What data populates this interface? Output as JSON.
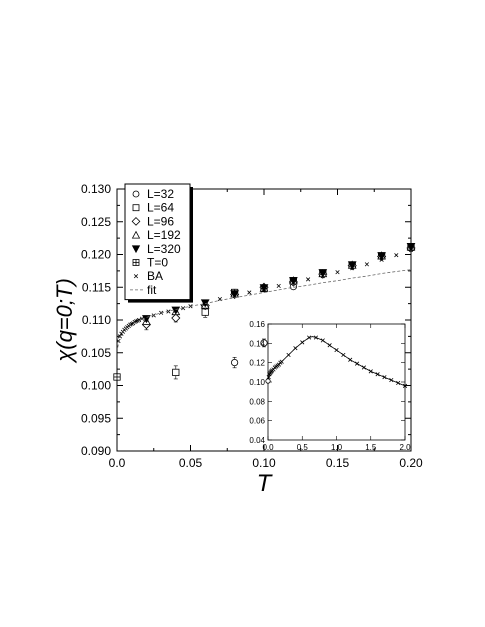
{
  "chart_data": {
    "type": "scatter",
    "xlabel": "T",
    "ylabel": "χ(q=0;T)",
    "xlim": [
      0.0,
      0.2
    ],
    "ylim": [
      0.09,
      0.13
    ],
    "xticks": [
      "0.0",
      "0.05",
      "0.10",
      "0.15",
      "0.20"
    ],
    "yticks": [
      "0.090",
      "0.095",
      "0.100",
      "0.105",
      "0.110",
      "0.115",
      "0.120",
      "0.125",
      "0.130"
    ],
    "legend_position": "top-left",
    "legend": [
      "L=32",
      "L=64",
      "L=96",
      "L=192",
      "L=320",
      "T=0",
      "BA",
      "fit"
    ],
    "series": [
      {
        "name": "L=32",
        "marker": "circle",
        "points": [
          [
            0.08,
            0.1035,
            0.0008
          ],
          [
            0.1,
            0.1065,
            0.0006
          ],
          [
            0.12,
            0.1151,
            0.0004
          ],
          [
            0.14,
            0.117,
            0.0004
          ],
          [
            0.16,
            0.1183,
            0.0003
          ],
          [
            0.18,
            0.1197,
            0.0003
          ],
          [
            0.2,
            0.1212,
            0.0003
          ]
        ]
      },
      {
        "name": "L=64",
        "marker": "square",
        "points": [
          [
            0.04,
            0.102,
            0.001
          ],
          [
            0.06,
            0.1112,
            0.0008
          ],
          [
            0.08,
            0.1142,
            0.0005
          ],
          [
            0.1,
            0.1148,
            0.0003
          ],
          [
            0.12,
            0.116,
            0.0003
          ],
          [
            0.14,
            0.1172,
            0.0003
          ],
          [
            0.16,
            0.1184,
            0.0003
          ],
          [
            0.18,
            0.1198,
            0.0003
          ],
          [
            0.2,
            0.1211,
            0.0003
          ]
        ]
      },
      {
        "name": "L=96",
        "marker": "diamond",
        "points": [
          [
            0.02,
            0.1093,
            0.0008
          ],
          [
            0.04,
            0.1103,
            0.0006
          ],
          [
            0.06,
            0.1122,
            0.0004
          ],
          [
            0.08,
            0.1139,
            0.0003
          ],
          [
            0.1,
            0.115,
            0.0003
          ],
          [
            0.12,
            0.1158,
            0.0003
          ],
          [
            0.14,
            0.117,
            0.0003
          ],
          [
            0.16,
            0.1183,
            0.0003
          ],
          [
            0.18,
            0.1197,
            0.0003
          ],
          [
            0.2,
            0.121,
            0.0003
          ]
        ]
      },
      {
        "name": "L=192",
        "marker": "triangle",
        "points": [
          [
            0.02,
            0.1098,
            0.0005
          ],
          [
            0.04,
            0.1113,
            0.0004
          ],
          [
            0.06,
            0.1123,
            0.0003
          ],
          [
            0.08,
            0.114,
            0.0003
          ],
          [
            0.1,
            0.1149,
            0.0003
          ],
          [
            0.12,
            0.116,
            0.0003
          ],
          [
            0.14,
            0.1171,
            0.0003
          ],
          [
            0.16,
            0.1184,
            0.0003
          ],
          [
            0.18,
            0.1198,
            0.0003
          ],
          [
            0.2,
            0.1212,
            0.0003
          ]
        ]
      },
      {
        "name": "L=320",
        "marker": "filled-triangle-down",
        "points": [
          [
            0.02,
            0.1102,
            0.0004
          ],
          [
            0.04,
            0.1115,
            0.0003
          ],
          [
            0.06,
            0.1126,
            0.0003
          ],
          [
            0.08,
            0.114,
            0.0003
          ],
          [
            0.1,
            0.1149,
            0.0002
          ],
          [
            0.12,
            0.116,
            0.0002
          ],
          [
            0.14,
            0.1172,
            0.0002
          ],
          [
            0.16,
            0.1184,
            0.0002
          ],
          [
            0.18,
            0.1198,
            0.0002
          ],
          [
            0.2,
            0.1212,
            0.0002
          ]
        ]
      },
      {
        "name": "T=0",
        "marker": "boxed-plus",
        "points": [
          [
            0.0,
            0.1013,
            0.0003
          ]
        ]
      },
      {
        "name": "BA",
        "marker": "cross",
        "points": [
          [
            0.001,
            0.1068
          ],
          [
            0.002,
            0.1075
          ],
          [
            0.003,
            0.1079
          ],
          [
            0.004,
            0.1082
          ],
          [
            0.005,
            0.1085
          ],
          [
            0.006,
            0.1087
          ],
          [
            0.007,
            0.1089
          ],
          [
            0.008,
            0.1091
          ],
          [
            0.009,
            0.1093
          ],
          [
            0.01,
            0.1094
          ],
          [
            0.011,
            0.1095
          ],
          [
            0.012,
            0.1097
          ],
          [
            0.013,
            0.1098
          ],
          [
            0.014,
            0.1099
          ],
          [
            0.015,
            0.11
          ],
          [
            0.017,
            0.1102
          ],
          [
            0.02,
            0.1104
          ],
          [
            0.025,
            0.1107
          ],
          [
            0.03,
            0.1111
          ],
          [
            0.035,
            0.1113
          ],
          [
            0.04,
            0.1116
          ],
          [
            0.045,
            0.1118
          ],
          [
            0.05,
            0.1121
          ],
          [
            0.06,
            0.1125
          ],
          [
            0.07,
            0.1132
          ],
          [
            0.08,
            0.1137
          ],
          [
            0.09,
            0.1142
          ],
          [
            0.1,
            0.1147
          ],
          [
            0.11,
            0.1152
          ],
          [
            0.12,
            0.1157
          ],
          [
            0.13,
            0.1162
          ],
          [
            0.14,
            0.1167
          ],
          [
            0.15,
            0.1173
          ],
          [
            0.16,
            0.1179
          ],
          [
            0.17,
            0.1185
          ],
          [
            0.18,
            0.1192
          ],
          [
            0.19,
            0.1199
          ],
          [
            0.2,
            0.1207
          ]
        ]
      },
      {
        "name": "fit",
        "style": "dashed",
        "x": [
          0.0005,
          0.002,
          0.005,
          0.01,
          0.02,
          0.03,
          0.04,
          0.05,
          0.06,
          0.07,
          0.08,
          0.09,
          0.1,
          0.11,
          0.12,
          0.13,
          0.14,
          0.15,
          0.16,
          0.17,
          0.18,
          0.19,
          0.2
        ],
        "y": [
          0.1058,
          0.1075,
          0.1085,
          0.1094,
          0.1104,
          0.1111,
          0.1116,
          0.1121,
          0.1125,
          0.113,
          0.1134,
          0.1138,
          0.1142,
          0.1146,
          0.115,
          0.1153,
          0.1157,
          0.116,
          0.1164,
          0.1167,
          0.1171,
          0.1174,
          0.1177
        ]
      }
    ],
    "inset": {
      "xlim": [
        0.0,
        2.0
      ],
      "ylim": [
        0.04,
        0.16
      ],
      "xticks": [
        "0.0",
        "0.5",
        "1.0",
        "1.5",
        "2.0"
      ],
      "yticks": [
        "0.04",
        "0.06",
        "0.08",
        "0.10",
        "0.12",
        "0.14",
        "0.16"
      ],
      "curve": {
        "x": [
          0.0,
          0.02,
          0.05,
          0.1,
          0.15,
          0.2,
          0.3,
          0.4,
          0.5,
          0.6,
          0.65,
          0.7,
          0.8,
          0.9,
          1.0,
          1.1,
          1.2,
          1.3,
          1.4,
          1.5,
          1.6,
          1.7,
          1.8,
          1.9,
          2.0
        ],
        "y": [
          0.101,
          0.108,
          0.111,
          0.115,
          0.118,
          0.121,
          0.128,
          0.135,
          0.141,
          0.146,
          0.147,
          0.146,
          0.143,
          0.138,
          0.133,
          0.128,
          0.123,
          0.119,
          0.115,
          0.111,
          0.108,
          0.105,
          0.102,
          0.099,
          0.096
        ]
      },
      "markers": [
        [
          0.01,
          0.105
        ],
        [
          0.02,
          0.108
        ],
        [
          0.03,
          0.109
        ],
        [
          0.04,
          0.11
        ],
        [
          0.05,
          0.111
        ],
        [
          0.06,
          0.112
        ],
        [
          0.08,
          0.113
        ],
        [
          0.1,
          0.115
        ],
        [
          0.12,
          0.116
        ],
        [
          0.14,
          0.117
        ],
        [
          0.16,
          0.118
        ],
        [
          0.18,
          0.12
        ],
        [
          0.2,
          0.121
        ],
        [
          0.3,
          0.128
        ],
        [
          0.4,
          0.135
        ],
        [
          0.5,
          0.141
        ],
        [
          0.6,
          0.146
        ],
        [
          0.7,
          0.146
        ],
        [
          0.8,
          0.143
        ],
        [
          0.9,
          0.138
        ],
        [
          1.0,
          0.133
        ],
        [
          1.1,
          0.128
        ],
        [
          1.2,
          0.123
        ],
        [
          1.3,
          0.119
        ],
        [
          1.4,
          0.115
        ],
        [
          1.5,
          0.111
        ],
        [
          1.6,
          0.108
        ],
        [
          1.7,
          0.105
        ],
        [
          1.8,
          0.102
        ],
        [
          1.9,
          0.099
        ],
        [
          2.0,
          0.096
        ]
      ],
      "t0_point": [
        0.0,
        0.101
      ]
    }
  }
}
